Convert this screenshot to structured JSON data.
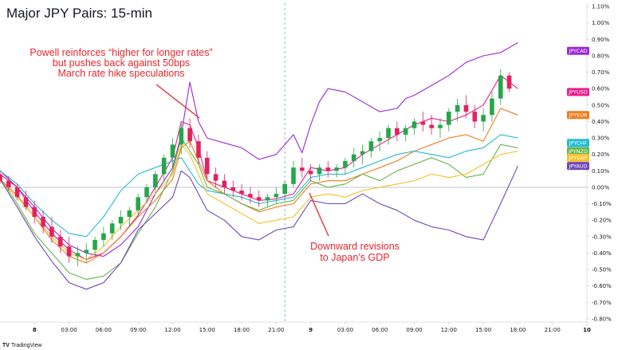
{
  "chart_data": {
    "type": "line",
    "title": "Major JPY Pairs: 15-min",
    "x_ticks": [
      "8",
      "03:00",
      "06:00",
      "09:00",
      "12:00",
      "15:00",
      "18:00",
      "21:00",
      "9",
      "03:00",
      "06:00",
      "09:00",
      "12:00",
      "15:00",
      "18:00",
      "21:00",
      "10"
    ],
    "y_ticks": [
      "1.10%",
      "1.00%",
      "0.90%",
      "0.80%",
      "0.70%",
      "0.60%",
      "0.50%",
      "0.40%",
      "0.30%",
      "0.20%",
      "0.10%",
      "0.00%",
      "-0.10%",
      "-0.20%",
      "-0.30%",
      "-0.40%",
      "-0.50%",
      "-0.60%",
      "-0.70%",
      "-0.80%"
    ],
    "ylim": [
      -0.82,
      1.12
    ],
    "xlim": [
      0,
      34
    ],
    "reference_line": 0.0,
    "session_break_x": 16.5,
    "series": [
      {
        "name": "JPYCAD",
        "color": "#9c27d6",
        "label_y": 0.83,
        "x": [
          0,
          1,
          2,
          3,
          4,
          5,
          6,
          7,
          8,
          9,
          10,
          10.5,
          11,
          11.5,
          12,
          13,
          14,
          15,
          16,
          17,
          17.5,
          18,
          18.5,
          19,
          20,
          21,
          22,
          23,
          23.5,
          24,
          25,
          26,
          27,
          28,
          29,
          30
        ],
        "y": [
          0.1,
          0.0,
          -0.12,
          -0.25,
          -0.35,
          -0.4,
          -0.42,
          -0.35,
          -0.24,
          -0.04,
          0.12,
          0.32,
          0.64,
          0.4,
          0.3,
          0.27,
          0.24,
          0.17,
          0.2,
          0.32,
          0.21,
          0.38,
          0.52,
          0.6,
          0.58,
          0.52,
          0.46,
          0.48,
          0.54,
          0.56,
          0.62,
          0.68,
          0.76,
          0.8,
          0.82,
          0.88
        ]
      },
      {
        "name": "JPYUSD",
        "color": "#e91e8c",
        "label_y": 0.58,
        "x": [
          0,
          1,
          2,
          3,
          4,
          5,
          6,
          7,
          8,
          9,
          10,
          10.5,
          11,
          11.5,
          12,
          13,
          14,
          15,
          16,
          17,
          18,
          19,
          20,
          21,
          22,
          23,
          24,
          25,
          26,
          27,
          28,
          29,
          30
        ],
        "y": [
          0.08,
          0.0,
          -0.15,
          -0.28,
          -0.38,
          -0.44,
          -0.4,
          -0.3,
          -0.17,
          0.0,
          0.18,
          0.4,
          0.38,
          0.24,
          0.04,
          0.0,
          -0.04,
          -0.08,
          -0.07,
          -0.04,
          0.12,
          0.1,
          0.12,
          0.2,
          0.26,
          0.32,
          0.38,
          0.42,
          0.4,
          0.44,
          0.5,
          0.68,
          0.6
        ]
      },
      {
        "name": "JPYEUR",
        "color": "#f07d1d",
        "label_y": 0.44,
        "x": [
          0,
          1,
          2,
          3,
          4,
          5,
          6,
          7,
          8,
          9,
          10,
          10.5,
          11,
          11.5,
          12,
          13,
          14,
          15,
          16,
          17,
          18,
          19,
          20,
          21,
          22,
          23,
          24,
          25,
          26,
          27,
          28,
          29,
          30
        ],
        "y": [
          0.05,
          -0.05,
          -0.18,
          -0.32,
          -0.42,
          -0.46,
          -0.4,
          -0.3,
          -0.18,
          -0.08,
          0.05,
          0.24,
          0.28,
          0.16,
          0.04,
          -0.04,
          -0.1,
          -0.15,
          -0.12,
          -0.1,
          0.02,
          0.04,
          0.04,
          0.08,
          0.12,
          0.16,
          0.22,
          0.26,
          0.3,
          0.32,
          0.28,
          0.48,
          0.44
        ]
      },
      {
        "name": "JPYCHF",
        "color": "#22bcd4",
        "label_y": 0.27,
        "x": [
          0,
          1,
          2,
          3,
          4,
          5,
          6,
          7,
          8,
          9,
          10,
          10.5,
          11,
          11.5,
          12,
          13,
          14,
          15,
          16,
          17,
          18,
          19,
          20,
          21,
          22,
          23,
          24,
          25,
          26,
          27,
          28,
          29,
          30
        ],
        "y": [
          0.1,
          0.02,
          -0.1,
          -0.2,
          -0.28,
          -0.3,
          -0.18,
          -0.02,
          0.08,
          0.12,
          0.16,
          0.18,
          0.1,
          0.02,
          -0.02,
          -0.04,
          -0.06,
          -0.1,
          -0.08,
          -0.06,
          0.06,
          0.08,
          0.08,
          0.12,
          0.16,
          0.2,
          0.22,
          0.2,
          0.18,
          0.22,
          0.24,
          0.32,
          0.3
        ]
      },
      {
        "name": "JPYNZD",
        "color": "#66b54c",
        "label_y": 0.22,
        "x": [
          0,
          1,
          2,
          3,
          4,
          5,
          6,
          7,
          8,
          9,
          10,
          10.5,
          11,
          11.5,
          12,
          13,
          14,
          15,
          16,
          17,
          18,
          19,
          20,
          21,
          22,
          23,
          24,
          25,
          26,
          27,
          28,
          29,
          30
        ],
        "y": [
          0.06,
          -0.1,
          -0.28,
          -0.4,
          -0.52,
          -0.56,
          -0.54,
          -0.46,
          -0.28,
          -0.12,
          0.1,
          0.3,
          0.22,
          0.14,
          0.0,
          -0.04,
          -0.1,
          -0.14,
          -0.1,
          -0.08,
          0.04,
          0.0,
          0.02,
          0.08,
          0.04,
          0.1,
          0.14,
          0.18,
          0.14,
          0.06,
          0.08,
          0.26,
          0.24
        ]
      },
      {
        "name": "JPYGBP",
        "color": "#f7c12a",
        "label_y": 0.18,
        "x": [
          0,
          1,
          2,
          3,
          4,
          5,
          6,
          7,
          8,
          9,
          10,
          10.5,
          11,
          11.5,
          12,
          13,
          14,
          15,
          16,
          17,
          18,
          19,
          20,
          21,
          22,
          23,
          24,
          25,
          26,
          27,
          28,
          29,
          30
        ],
        "y": [
          0.04,
          -0.06,
          -0.18,
          -0.3,
          -0.4,
          -0.44,
          -0.36,
          -0.24,
          -0.14,
          -0.04,
          0.08,
          0.26,
          0.2,
          0.08,
          -0.04,
          -0.1,
          -0.16,
          -0.22,
          -0.2,
          -0.18,
          -0.06,
          -0.04,
          -0.06,
          -0.02,
          0.0,
          0.02,
          0.04,
          0.08,
          0.06,
          0.08,
          0.14,
          0.2,
          0.22
        ]
      },
      {
        "name": "JPYAUD",
        "color": "#6f48b8",
        "label_y": 0.13,
        "x": [
          0,
          1,
          2,
          3,
          4,
          5,
          6,
          7,
          8,
          9,
          10,
          10.5,
          11,
          11.5,
          12,
          13,
          14,
          15,
          16,
          17,
          18,
          19,
          20,
          21,
          22,
          23,
          24,
          25,
          26,
          27,
          28,
          29,
          30
        ],
        "y": [
          0.05,
          -0.12,
          -0.3,
          -0.45,
          -0.58,
          -0.62,
          -0.58,
          -0.46,
          -0.26,
          -0.16,
          -0.06,
          0.1,
          0.06,
          -0.04,
          -0.14,
          -0.2,
          -0.3,
          -0.32,
          -0.26,
          -0.24,
          -0.08,
          -0.1,
          -0.1,
          -0.04,
          -0.1,
          -0.14,
          -0.2,
          -0.24,
          -0.26,
          -0.3,
          -0.32,
          -0.1,
          0.13
        ]
      }
    ],
    "candles": {
      "color_up": "#26a64a",
      "color_down": "#e0245e",
      "ohlc": [
        [
          0,
          0.08,
          0.1,
          0.02,
          0.04
        ],
        [
          0.5,
          0.04,
          0.07,
          -0.02,
          0.0
        ],
        [
          1,
          0.0,
          0.02,
          -0.08,
          -0.06
        ],
        [
          1.5,
          -0.06,
          -0.02,
          -0.14,
          -0.12
        ],
        [
          2,
          -0.12,
          -0.08,
          -0.22,
          -0.18
        ],
        [
          2.5,
          -0.18,
          -0.14,
          -0.28,
          -0.24
        ],
        [
          3,
          -0.24,
          -0.18,
          -0.34,
          -0.3
        ],
        [
          3.5,
          -0.3,
          -0.26,
          -0.4,
          -0.36
        ],
        [
          4,
          -0.36,
          -0.3,
          -0.46,
          -0.42
        ],
        [
          4.5,
          -0.42,
          -0.36,
          -0.48,
          -0.4
        ],
        [
          5,
          -0.4,
          -0.34,
          -0.46,
          -0.38
        ],
        [
          5.5,
          -0.38,
          -0.3,
          -0.42,
          -0.32
        ],
        [
          6,
          -0.32,
          -0.24,
          -0.36,
          -0.28
        ],
        [
          6.5,
          -0.28,
          -0.2,
          -0.32,
          -0.22
        ],
        [
          7,
          -0.22,
          -0.14,
          -0.26,
          -0.18
        ],
        [
          7.5,
          -0.18,
          -0.12,
          -0.24,
          -0.14
        ],
        [
          8,
          -0.14,
          -0.04,
          -0.18,
          -0.06
        ],
        [
          8.5,
          -0.06,
          0.02,
          -0.1,
          0.0
        ],
        [
          9,
          0.0,
          0.1,
          -0.04,
          0.08
        ],
        [
          9.5,
          0.08,
          0.2,
          0.04,
          0.18
        ],
        [
          10,
          0.18,
          0.3,
          0.12,
          0.26
        ],
        [
          10.5,
          0.26,
          0.4,
          0.2,
          0.36
        ],
        [
          11,
          0.36,
          0.42,
          0.24,
          0.28
        ],
        [
          11.5,
          0.28,
          0.32,
          0.14,
          0.18
        ],
        [
          12,
          0.18,
          0.22,
          0.04,
          0.08
        ],
        [
          12.5,
          0.08,
          0.12,
          0.0,
          0.04
        ],
        [
          13,
          0.04,
          0.08,
          -0.04,
          0.0
        ],
        [
          13.5,
          0.0,
          0.04,
          -0.06,
          -0.02
        ],
        [
          14,
          -0.02,
          0.02,
          -0.08,
          -0.04
        ],
        [
          14.5,
          -0.04,
          0.0,
          -0.1,
          -0.06
        ],
        [
          15,
          -0.06,
          -0.02,
          -0.12,
          -0.08
        ],
        [
          15.5,
          -0.08,
          -0.04,
          -0.12,
          -0.06
        ],
        [
          16,
          -0.06,
          0.0,
          -0.1,
          -0.04
        ],
        [
          16.5,
          -0.04,
          0.04,
          -0.08,
          0.02
        ],
        [
          17,
          0.02,
          0.16,
          0.0,
          0.12
        ],
        [
          17.5,
          0.12,
          0.18,
          0.06,
          0.1
        ],
        [
          18,
          0.1,
          0.14,
          0.04,
          0.08
        ],
        [
          18.5,
          0.08,
          0.14,
          0.04,
          0.12
        ],
        [
          19,
          0.12,
          0.16,
          0.06,
          0.1
        ],
        [
          19.5,
          0.1,
          0.14,
          0.06,
          0.12
        ],
        [
          20,
          0.12,
          0.18,
          0.08,
          0.16
        ],
        [
          20.5,
          0.16,
          0.24,
          0.12,
          0.2
        ],
        [
          21,
          0.2,
          0.26,
          0.14,
          0.22
        ],
        [
          21.5,
          0.22,
          0.3,
          0.18,
          0.28
        ],
        [
          22,
          0.28,
          0.34,
          0.22,
          0.3
        ],
        [
          22.5,
          0.3,
          0.38,
          0.26,
          0.36
        ],
        [
          23,
          0.36,
          0.4,
          0.28,
          0.32
        ],
        [
          23.5,
          0.32,
          0.38,
          0.28,
          0.36
        ],
        [
          24,
          0.36,
          0.42,
          0.32,
          0.4
        ],
        [
          24.5,
          0.4,
          0.46,
          0.34,
          0.38
        ],
        [
          25,
          0.38,
          0.44,
          0.32,
          0.36
        ],
        [
          25.5,
          0.36,
          0.42,
          0.3,
          0.38
        ],
        [
          26,
          0.38,
          0.48,
          0.34,
          0.46
        ],
        [
          26.5,
          0.46,
          0.54,
          0.4,
          0.5
        ],
        [
          27,
          0.5,
          0.56,
          0.42,
          0.46
        ],
        [
          27.5,
          0.46,
          0.5,
          0.36,
          0.4
        ],
        [
          28,
          0.4,
          0.48,
          0.34,
          0.44
        ],
        [
          28.5,
          0.44,
          0.58,
          0.4,
          0.54
        ],
        [
          29,
          0.54,
          0.72,
          0.5,
          0.68
        ],
        [
          29.5,
          0.68,
          0.7,
          0.58,
          0.6
        ]
      ]
    },
    "annotations": [
      {
        "lines": [
          "Powell reinforces “higher for longer rates”",
          "but pushes back against 50bps",
          "March rate hike speculations"
        ]
      },
      {
        "lines": [
          "Downward revisions",
          "to Japan’s GDP"
        ]
      }
    ],
    "annotation_color": "#e8262c",
    "watermark": "TradingView"
  }
}
